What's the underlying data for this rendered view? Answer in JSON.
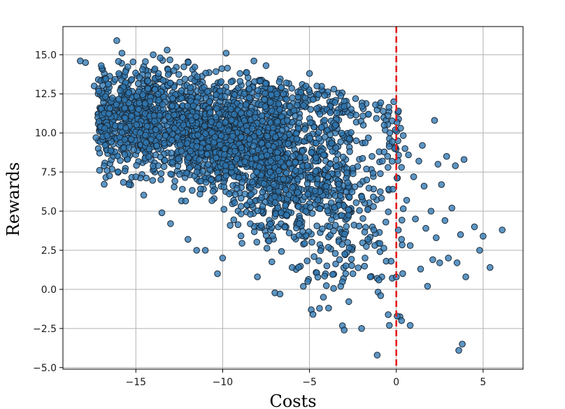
{
  "chart_data": {
    "type": "scatter",
    "title": "",
    "xlabel": "Costs",
    "ylabel": "Rewards",
    "xlim": [
      -19.2,
      7.3
    ],
    "ylim": [
      -5.1,
      16.8
    ],
    "xticks": [
      -15,
      -10,
      -5,
      0,
      5
    ],
    "xtick_labels": [
      "−15",
      "−10",
      "−5",
      "0",
      "5"
    ],
    "yticks": [
      -5.0,
      -2.5,
      0.0,
      2.5,
      5.0,
      7.5,
      10.0,
      12.5,
      15.0
    ],
    "ytick_labels": [
      "−5.0",
      "−2.5",
      "0.0",
      "2.5",
      "5.0",
      "7.5",
      "10.0",
      "12.5",
      "15.0"
    ],
    "grid": true,
    "reference_line": {
      "x": 0,
      "style": "dashed",
      "color": "#e31a1c"
    },
    "marker_color": "#2f78b4",
    "marker_edge": "#1b2a38",
    "approx_num_points": 3000,
    "cluster_centers": [
      {
        "x": -12.5,
        "y": 10.5
      },
      {
        "x": -9.0,
        "y": 8.5
      },
      {
        "x": -5.0,
        "y": 6.0
      }
    ],
    "points": [
      [
        -18.2,
        14.6
      ],
      [
        -17.9,
        14.5
      ],
      [
        -17.4,
        13.0
      ],
      [
        -17.3,
        9.7
      ],
      [
        -16.8,
        10.3
      ],
      [
        -16.1,
        15.9
      ],
      [
        -15.8,
        15.1
      ],
      [
        -15.6,
        13.9
      ],
      [
        -15.4,
        6.7
      ],
      [
        -15.0,
        7.2
      ],
      [
        -14.0,
        15.0
      ],
      [
        -13.5,
        4.9
      ],
      [
        -13.2,
        15.3
      ],
      [
        -13.0,
        4.2
      ],
      [
        -12.0,
        3.2
      ],
      [
        -11.5,
        2.5
      ],
      [
        -11.0,
        2.5
      ],
      [
        -10.3,
        1.0
      ],
      [
        -10.0,
        2.0
      ],
      [
        -9.8,
        15.1
      ],
      [
        -9.0,
        13.3
      ],
      [
        -8.2,
        14.6
      ],
      [
        -8.0,
        0.8
      ],
      [
        -7.5,
        14.3
      ],
      [
        -6.7,
        -0.3
      ],
      [
        -6.5,
        12.5
      ],
      [
        -6.0,
        1.4
      ],
      [
        -5.5,
        12.6
      ],
      [
        -5.3,
        12.9
      ],
      [
        -5.2,
        13.0
      ],
      [
        -5.1,
        0.5
      ],
      [
        -5.0,
        13.8
      ],
      [
        -4.9,
        -1.3
      ],
      [
        -4.8,
        -1.6
      ],
      [
        -4.4,
        11.2
      ],
      [
        -4.2,
        -0.5
      ],
      [
        -4.0,
        1.5
      ],
      [
        -4.0,
        11.5
      ],
      [
        -3.9,
        -1.2
      ],
      [
        -3.8,
        11.3
      ],
      [
        -3.6,
        12.8
      ],
      [
        -3.5,
        10.5
      ],
      [
        -3.2,
        0.2
      ],
      [
        -3.0,
        -2.6
      ],
      [
        -3.0,
        11.7
      ],
      [
        -2.8,
        3.0
      ],
      [
        -2.7,
        5.9
      ],
      [
        -2.5,
        1.0
      ],
      [
        -2.3,
        9.5
      ],
      [
        -2.0,
        -2.5
      ],
      [
        -1.9,
        10.5
      ],
      [
        -1.8,
        2.0
      ],
      [
        -1.7,
        7.0
      ],
      [
        -1.6,
        11.2
      ],
      [
        -1.5,
        0.8
      ],
      [
        -1.4,
        8.5
      ],
      [
        -1.3,
        3.8
      ],
      [
        -1.2,
        11.8
      ],
      [
        -1.1,
        -4.2
      ],
      [
        -1.0,
        0.6
      ],
      [
        -0.9,
        -0.4
      ],
      [
        -0.8,
        8.2
      ],
      [
        -0.7,
        10.5
      ],
      [
        -0.6,
        4.3
      ],
      [
        -0.5,
        8.5
      ],
      [
        -0.4,
        -2.3
      ],
      [
        -0.3,
        1.8
      ],
      [
        -0.2,
        6.4
      ],
      [
        -0.1,
        9.0
      ],
      [
        -0.05,
        10.2
      ],
      [
        0.25,
        10.3
      ],
      [
        0.3,
        7.8
      ],
      [
        0.3,
        3.2
      ],
      [
        0.3,
        -2.0
      ],
      [
        0.5,
        9.0
      ],
      [
        0.6,
        5.7
      ],
      [
        0.7,
        8.6
      ],
      [
        0.8,
        2.8
      ],
      [
        0.8,
        -2.3
      ],
      [
        1.0,
        7.2
      ],
      [
        1.1,
        4.5
      ],
      [
        1.3,
        8.2
      ],
      [
        1.4,
        1.3
      ],
      [
        1.5,
        9.2
      ],
      [
        1.6,
        6.6
      ],
      [
        1.7,
        3.9
      ],
      [
        1.8,
        0.2
      ],
      [
        2.0,
        5.0
      ],
      [
        2.1,
        1.9
      ],
      [
        2.2,
        10.8
      ],
      [
        2.3,
        3.3
      ],
      [
        2.4,
        8.0
      ],
      [
        2.5,
        1.7
      ],
      [
        2.6,
        6.7
      ],
      [
        2.8,
        4.4
      ],
      [
        2.9,
        8.5
      ],
      [
        3.0,
        2.0
      ],
      [
        3.2,
        5.2
      ],
      [
        3.4,
        7.9
      ],
      [
        3.5,
        1.7
      ],
      [
        3.6,
        -3.9
      ],
      [
        3.7,
        3.5
      ],
      [
        3.8,
        -3.5
      ],
      [
        3.9,
        8.3
      ],
      [
        4.0,
        0.8
      ],
      [
        4.5,
        4.0
      ],
      [
        4.8,
        2.5
      ],
      [
        5.0,
        3.4
      ],
      [
        5.4,
        1.4
      ],
      [
        6.1,
        3.8
      ]
    ]
  }
}
